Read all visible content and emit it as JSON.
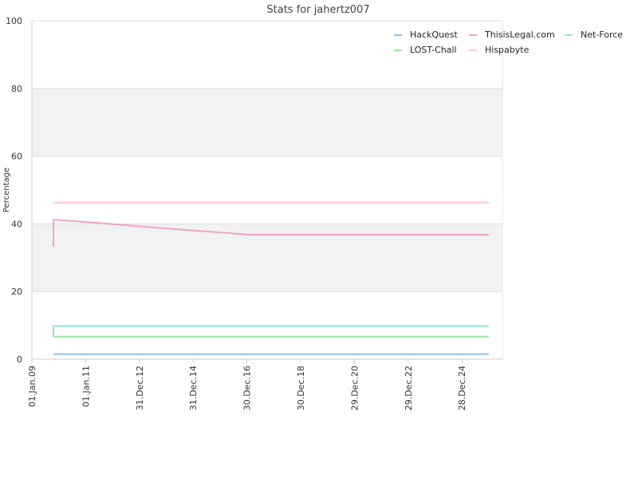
{
  "chart_data": {
    "type": "line",
    "title": "Stats for jahertz007",
    "ylabel": "Percentage",
    "xlabel": "",
    "ylim": [
      0,
      100
    ],
    "yticks": [
      0,
      20,
      40,
      60,
      80,
      100
    ],
    "xlim": [
      "2009-01-01",
      "2026-07-01"
    ],
    "xticks": [
      {
        "date": "2009-01-01",
        "label": "01.Jan.09"
      },
      {
        "date": "2011-01-01",
        "label": "01.Jan.11"
      },
      {
        "date": "2012-12-31",
        "label": "31.Dec.12"
      },
      {
        "date": "2014-12-31",
        "label": "31.Dec.14"
      },
      {
        "date": "2016-12-30",
        "label": "30.Dec.16"
      },
      {
        "date": "2018-12-30",
        "label": "30.Dec.18"
      },
      {
        "date": "2020-12-29",
        "label": "29.Dec.20"
      },
      {
        "date": "2022-12-29",
        "label": "29.Dec.22"
      },
      {
        "date": "2024-12-28",
        "label": "28.Dec.24"
      }
    ],
    "y_bands": [
      [
        20,
        40
      ],
      [
        60,
        80
      ]
    ],
    "grid": true,
    "legend_position": "top-right",
    "series": [
      {
        "name": "HackQuest",
        "color": "#8ec1e6",
        "x": [
          "2009-10-20",
          "2025-12-31"
        ],
        "y": [
          1.5,
          1.5
        ]
      },
      {
        "name": "LOST-Chall",
        "color": "#97e89a",
        "x": [
          "2009-10-20",
          "2025-12-31"
        ],
        "y": [
          6.7,
          6.7
        ]
      },
      {
        "name": "ThisisLegal.com",
        "color": "#f2a3c8",
        "x": [
          "2009-10-20",
          "2009-10-20",
          "2009-10-30",
          "2011-06-01",
          "2013-06-01",
          "2015-06-01",
          "2016-12-01",
          "2017-01-01",
          "2025-12-31"
        ],
        "y": [
          33.3,
          41.2,
          41.2,
          40.3,
          39.0,
          37.8,
          36.9,
          36.8,
          36.8
        ]
      },
      {
        "name": "Hispabyte",
        "color": "#f7c6d8",
        "x": [
          "2009-10-20",
          "2025-12-31"
        ],
        "y": [
          46.3,
          46.3
        ]
      },
      {
        "name": "Net-Force",
        "color": "#8ee3df",
        "x": [
          "2009-10-20",
          "2009-10-20",
          "2009-10-30",
          "2025-12-31"
        ],
        "y": [
          6.6,
          9.8,
          9.8,
          9.8
        ]
      }
    ]
  }
}
